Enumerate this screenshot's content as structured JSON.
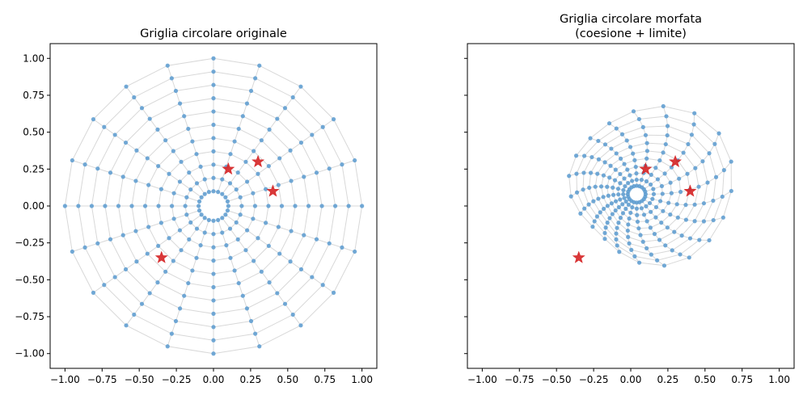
{
  "chart_data": [
    {
      "type": "scatter",
      "title": "Griglia circolare originale",
      "xlabel": "",
      "ylabel": "",
      "xlim": [
        -1.1,
        1.1
      ],
      "ylim": [
        -1.1,
        1.1
      ],
      "xticks": [
        -1.0,
        -0.75,
        -0.5,
        -0.25,
        0.0,
        0.25,
        0.5,
        0.75,
        1.0
      ],
      "yticks": [
        -1.0,
        -0.75,
        -0.5,
        -0.25,
        0.0,
        0.25,
        0.5,
        0.75,
        1.0
      ],
      "xtick_labels": [
        "−1.00",
        "−0.75",
        "−0.50",
        "−0.25",
        "0.00",
        "0.25",
        "0.50",
        "0.75",
        "1.00"
      ],
      "ytick_labels": [
        "−1.00",
        "−0.75",
        "−0.50",
        "−0.25",
        "0.00",
        "0.25",
        "0.50",
        "0.75",
        "1.00"
      ],
      "grid": false,
      "grid_structure": {
        "rings": 11,
        "radius_min": 0.1,
        "radius_max": 1.0,
        "spokes": 20,
        "angle_offset_deg": 0
      },
      "point_color": "#5a9bd0",
      "line_color": "#d8d8d8",
      "highlight_points": [
        {
          "x": 0.1,
          "y": 0.25
        },
        {
          "x": 0.3,
          "y": 0.3
        },
        {
          "x": 0.4,
          "y": 0.1
        },
        {
          "x": -0.35,
          "y": -0.35
        }
      ],
      "highlight_color": "#d62728"
    },
    {
      "type": "scatter",
      "title": "Griglia circolare morfata\n(coesione + limite)",
      "xlabel": "",
      "ylabel": "",
      "xlim": [
        -1.1,
        1.1
      ],
      "ylim": [
        -1.1,
        1.1
      ],
      "xticks": [
        -1.0,
        -0.75,
        -0.5,
        -0.25,
        0.0,
        0.25,
        0.5,
        0.75,
        1.0
      ],
      "xtick_labels": [
        "−1.00",
        "−0.75",
        "−0.50",
        "−0.25",
        "0.00",
        "0.25",
        "0.50",
        "0.75",
        "1.00"
      ],
      "yticks": [
        -1.0,
        -0.75,
        -0.5,
        -0.25,
        0.0,
        0.25,
        0.5,
        0.75,
        1.0
      ],
      "ytick_labels_shown": false,
      "sharey": true,
      "grid": false,
      "grid_structure": {
        "rings": 11,
        "spokes": 20,
        "center": [
          0.04,
          0.08
        ],
        "radius_min": 0.06,
        "radius_max_range": [
          0.4,
          0.68
        ]
      },
      "point_color": "#5a9bd0",
      "line_color": "#d8d8d8",
      "highlight_points": [
        {
          "x": 0.1,
          "y": 0.25
        },
        {
          "x": 0.3,
          "y": 0.3
        },
        {
          "x": 0.4,
          "y": 0.1
        },
        {
          "x": -0.35,
          "y": -0.35
        }
      ],
      "highlight_color": "#d62728"
    }
  ]
}
